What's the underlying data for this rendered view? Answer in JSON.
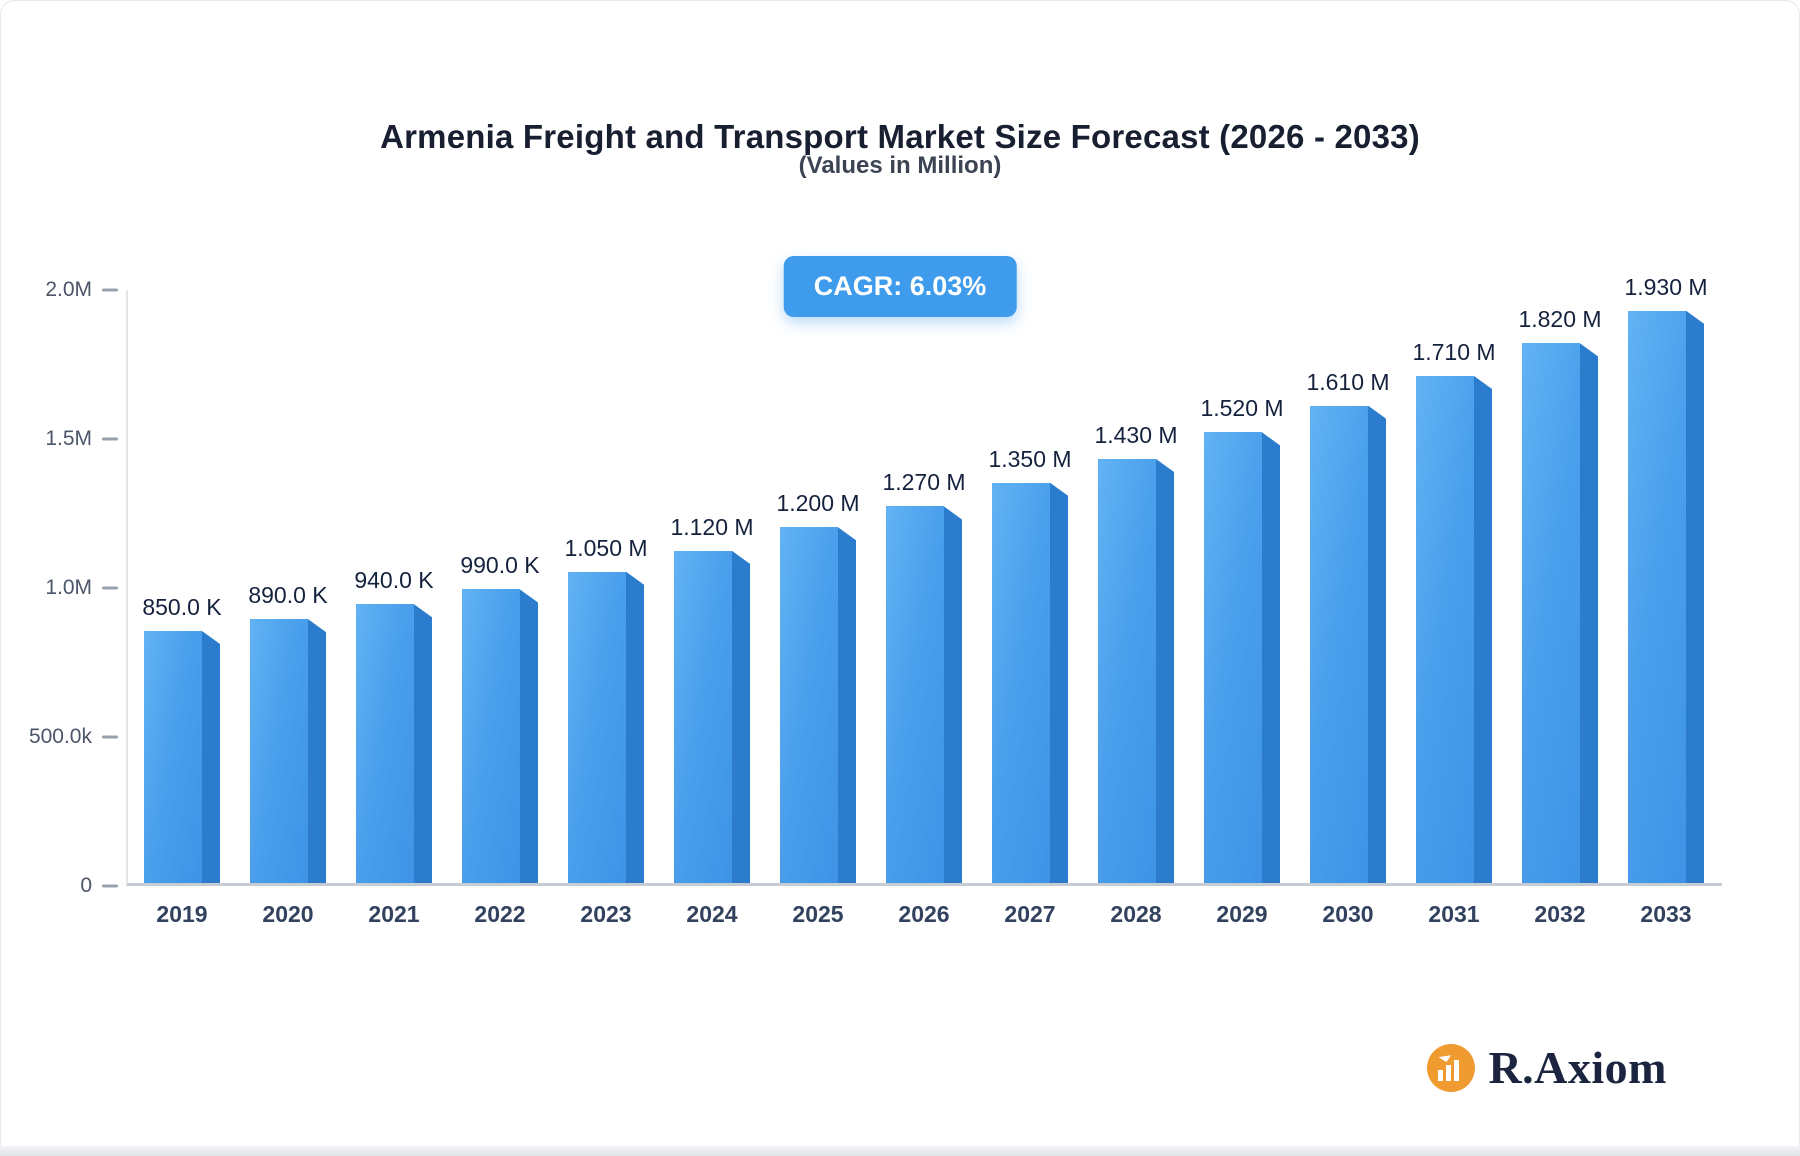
{
  "header": {
    "title": "Armenia Freight and Transport Market Size Forecast (2026 - 2033)",
    "subtitle": "(Values in Million)"
  },
  "badge": {
    "label": "CAGR: 6.03%"
  },
  "logo": {
    "text": "R.Axiom",
    "icon": "bar-chart-icon",
    "accent_color": "#f09b30",
    "text_color": "#1b2540"
  },
  "colors": {
    "bar_front": "#459ee9",
    "bar_side": "#2b7ccd",
    "badge_bg": "#3f9cec",
    "value_label": "#15223e",
    "axis_label": "#4c5569"
  },
  "chart_data": {
    "type": "bar",
    "title": "Armenia Freight and Transport Market Size Forecast (2026 - 2033)",
    "subtitle": "(Values in Million)",
    "xlabel": "",
    "ylabel": "",
    "unit": "Million",
    "categories": [
      "2019",
      "2020",
      "2021",
      "2022",
      "2023",
      "2024",
      "2025",
      "2026",
      "2027",
      "2028",
      "2029",
      "2030",
      "2031",
      "2032",
      "2033"
    ],
    "values": [
      0.85,
      0.89,
      0.94,
      0.99,
      1.05,
      1.12,
      1.2,
      1.27,
      1.35,
      1.43,
      1.52,
      1.61,
      1.71,
      1.82,
      1.93
    ],
    "value_labels": [
      "850.0 K",
      "890.0 K",
      "940.0 K",
      "990.0 K",
      "1.050 M",
      "1.120 M",
      "1.200 M",
      "1.270 M",
      "1.350 M",
      "1.430 M",
      "1.520 M",
      "1.610 M",
      "1.710 M",
      "1.820 M",
      "1.930 M"
    ],
    "ylim": [
      0,
      2.0
    ],
    "y_ticks": [
      {
        "label": "0",
        "value": 0
      },
      {
        "label": "500.0k",
        "value": 0.5
      },
      {
        "label": "1.0M",
        "value": 1.0
      },
      {
        "label": "1.5M",
        "value": 1.5
      },
      {
        "label": "2.0M",
        "value": 2.0
      }
    ],
    "grid": false,
    "legend": "none",
    "annotation": "CAGR: 6.03%"
  }
}
